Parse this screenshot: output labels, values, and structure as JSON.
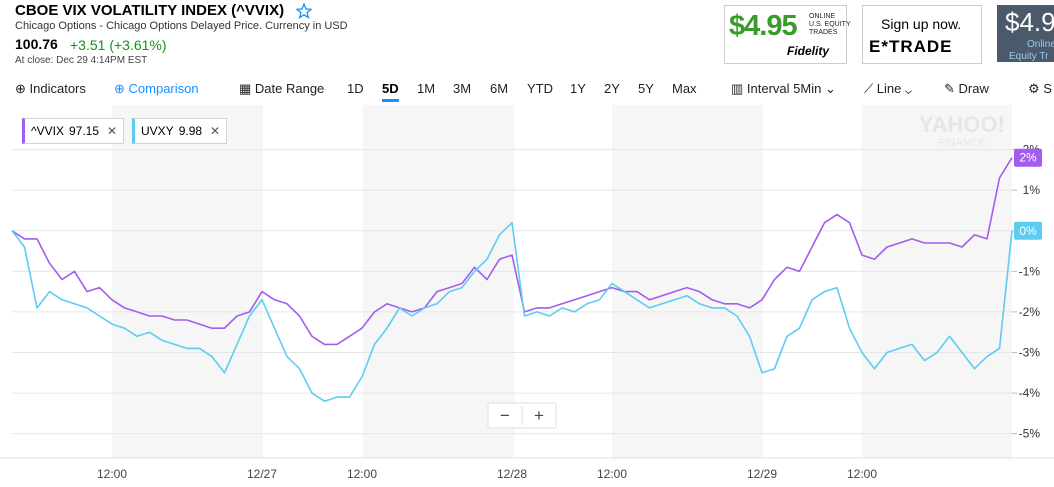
{
  "header": {
    "title": "CBOE VIX VOLATILITY INDEX (^VVIX)",
    "subtitle": "Chicago Options - Chicago Options Delayed Price. Currency in USD",
    "price": "100.76",
    "change": "+3.51 (+3.61%)",
    "close_time": "At close: Dec 29 4:14PM EST"
  },
  "ads": [
    {
      "price": "$4.95",
      "lines": [
        "ONLINE",
        "U.S. EQUITY",
        "TRADES"
      ],
      "brand": "Fidelity"
    },
    {
      "cta": "Sign up now.",
      "brand": "E*TRADE"
    },
    {
      "price": "$4.9",
      "lines": [
        "Online",
        "Equity Tr"
      ]
    }
  ],
  "toolbar": {
    "indicators": "Indicators",
    "comparison": "Comparison",
    "date_range": "Date Range",
    "ranges": [
      "1D",
      "5D",
      "1M",
      "3M",
      "6M",
      "YTD",
      "1Y",
      "2Y",
      "5Y",
      "Max"
    ],
    "selected_index": 1,
    "interval_label": "Interval",
    "interval": "5Min",
    "chart_style": "Line",
    "draw": "Draw",
    "settings": "S"
  },
  "zoom": [
    "−",
    "+"
  ],
  "watermark": [
    "YAHOO!",
    "FINANCE"
  ],
  "chart_data": {
    "type": "line",
    "categories": [
      null,
      null,
      null,
      null,
      null,
      null,
      null,
      null,
      "12:00",
      null,
      null,
      null,
      null,
      null,
      null,
      null,
      null,
      null,
      null,
      null,
      "12/27",
      null,
      null,
      null,
      null,
      null,
      null,
      null,
      "12:00",
      null,
      null,
      null,
      null,
      null,
      null,
      null,
      null,
      null,
      null,
      null,
      "12/28",
      null,
      null,
      null,
      null,
      null,
      null,
      null,
      "12:00",
      null,
      null,
      null,
      null,
      null,
      null,
      null,
      null,
      null,
      null,
      null,
      "12/29",
      null,
      null,
      null,
      null,
      null,
      null,
      null,
      "12:00",
      null,
      null,
      null,
      null,
      null,
      null,
      null,
      null,
      null,
      null,
      null,
      null
    ],
    "series": [
      {
        "name": "^VVIX",
        "last": 97.15,
        "color": "#a35cf0",
        "values": [
          0.0,
          -0.2,
          -0.2,
          -0.8,
          -1.2,
          -1.0,
          -1.5,
          -1.4,
          -1.7,
          -1.9,
          -2.0,
          -2.1,
          -2.1,
          -2.2,
          -2.2,
          -2.3,
          -2.4,
          -2.4,
          -2.1,
          -2.0,
          -1.5,
          -1.7,
          -1.8,
          -2.1,
          -2.6,
          -2.8,
          -2.8,
          -2.6,
          -2.4,
          -2.0,
          -1.8,
          -1.9,
          -2.0,
          -1.9,
          -1.5,
          -1.4,
          -1.3,
          -0.9,
          -1.2,
          -0.7,
          -0.6,
          -2.0,
          -1.9,
          -1.9,
          -1.8,
          -1.7,
          -1.6,
          -1.5,
          -1.4,
          -1.5,
          -1.5,
          -1.7,
          -1.6,
          -1.5,
          -1.4,
          -1.5,
          -1.7,
          -1.8,
          -1.8,
          -1.9,
          -1.7,
          -1.2,
          -0.9,
          -1.0,
          -0.4,
          0.2,
          0.4,
          0.2,
          -0.6,
          -0.7,
          -0.4,
          -0.3,
          -0.2,
          -0.3,
          -0.3,
          -0.3,
          -0.4,
          -0.1,
          -0.2,
          1.3,
          1.8
        ],
        "value_labels": [
          null,
          null,
          null,
          null,
          null,
          null,
          null,
          null,
          null,
          null,
          null,
          null,
          null,
          null,
          null,
          null,
          null,
          null,
          null,
          null,
          null,
          null,
          null,
          null,
          null,
          null,
          null,
          null,
          null,
          null,
          null,
          null,
          null,
          null,
          null,
          null,
          null,
          null,
          null,
          null,
          null,
          null,
          null,
          null,
          null,
          null,
          null,
          null,
          null,
          null,
          null,
          null,
          null,
          null,
          null,
          null,
          null,
          null,
          null,
          null,
          null,
          null,
          null,
          null,
          null,
          null,
          null,
          null,
          null,
          null,
          null,
          null,
          null,
          null,
          null,
          null,
          null,
          null,
          null,
          null,
          "2%"
        ]
      },
      {
        "name": "UVXY",
        "last": 9.98,
        "color": "#5ccdf0",
        "values": [
          0.0,
          -0.4,
          -1.9,
          -1.5,
          -1.7,
          -1.8,
          -1.9,
          -2.1,
          -2.3,
          -2.4,
          -2.6,
          -2.5,
          -2.7,
          -2.8,
          -2.9,
          -2.9,
          -3.1,
          -3.5,
          -2.8,
          -2.1,
          -1.7,
          -2.4,
          -3.1,
          -3.4,
          -4.0,
          -4.2,
          -4.1,
          -4.1,
          -3.6,
          -2.8,
          -2.4,
          -1.9,
          -2.1,
          -1.9,
          -1.8,
          -1.5,
          -1.4,
          -1.0,
          -0.7,
          -0.1,
          0.2,
          -2.1,
          -2.0,
          -2.1,
          -1.9,
          -2.0,
          -1.8,
          -1.7,
          -1.3,
          -1.5,
          -1.7,
          -1.9,
          -1.8,
          -1.7,
          -1.6,
          -1.8,
          -1.9,
          -1.9,
          -2.1,
          -2.6,
          -3.5,
          -3.4,
          -2.6,
          -2.4,
          -1.7,
          -1.5,
          -1.4,
          -2.4,
          -3.0,
          -3.4,
          -3.0,
          -2.9,
          -2.8,
          -3.2,
          -3.0,
          -2.6,
          -3.0,
          -3.4,
          -3.1,
          -2.9,
          0.0
        ],
        "value_labels": [
          null,
          null,
          null,
          null,
          null,
          null,
          null,
          null,
          null,
          null,
          null,
          null,
          null,
          null,
          null,
          null,
          null,
          null,
          null,
          null,
          null,
          null,
          null,
          null,
          null,
          null,
          null,
          null,
          null,
          null,
          null,
          null,
          null,
          null,
          null,
          null,
          null,
          null,
          null,
          null,
          null,
          null,
          null,
          null,
          null,
          null,
          null,
          null,
          null,
          null,
          null,
          null,
          null,
          null,
          null,
          null,
          null,
          null,
          null,
          null,
          null,
          null,
          null,
          null,
          null,
          null,
          null,
          null,
          null,
          null,
          null,
          null,
          null,
          null,
          null,
          null,
          null,
          null,
          null,
          null,
          "0%"
        ]
      }
    ],
    "ylim": [
      -5.6,
      3.1
    ],
    "yticks": [
      {
        "value": 2,
        "label": "2%"
      },
      {
        "value": 1,
        "label": "1%"
      },
      {
        "value": 0,
        "label": "0%"
      },
      {
        "value": -1,
        "label": "-1%"
      },
      {
        "value": -2,
        "label": "-2%"
      },
      {
        "value": -3,
        "label": "-3%"
      },
      {
        "value": -4,
        "label": "-4%"
      },
      {
        "value": -5,
        "label": "-5%"
      }
    ],
    "grid": true
  }
}
